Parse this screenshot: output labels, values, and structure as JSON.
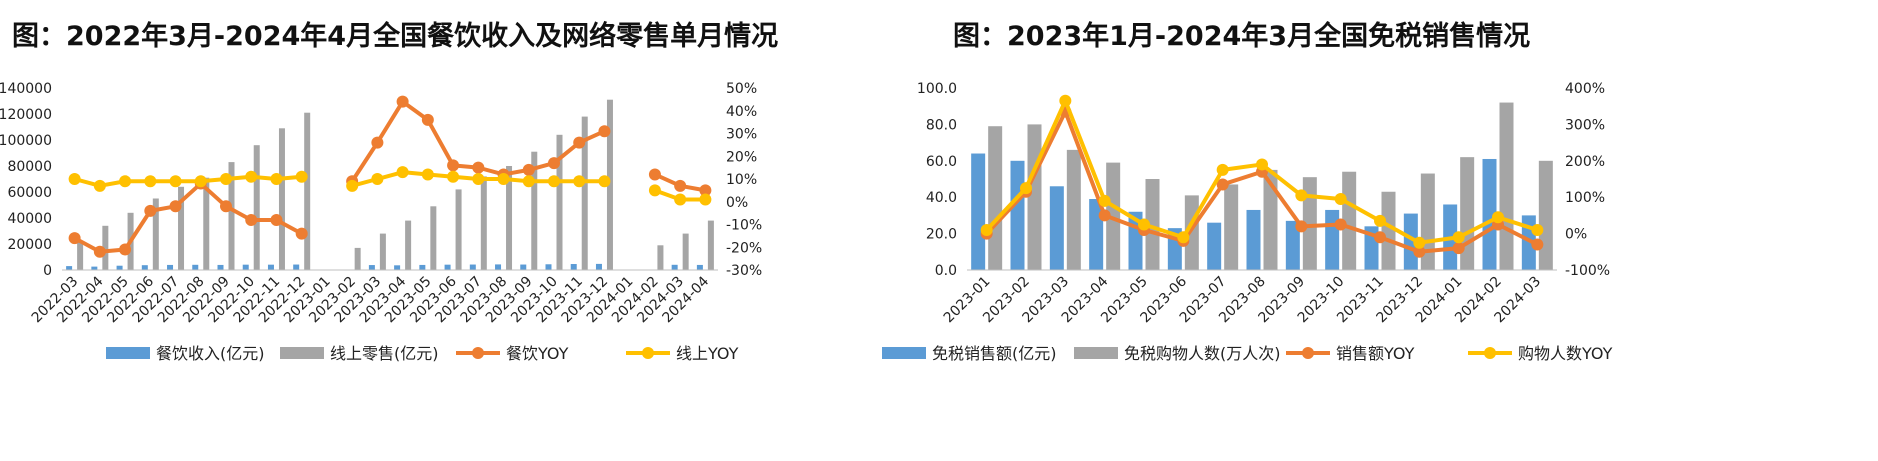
{
  "chart_data": [
    {
      "type": "bar",
      "title": "图：2022年3月-2024年4月全国餐饮收入及网络零售单月情况",
      "categories": [
        "2022-03",
        "2022-04",
        "2022-05",
        "2022-06",
        "2022-07",
        "2022-08",
        "2022-09",
        "2022-10",
        "2022-11",
        "2022-12",
        "2023-01",
        "2023-02",
        "2023-03",
        "2023-04",
        "2023-05",
        "2023-06",
        "2023-07",
        "2023-08",
        "2023-09",
        "2023-10",
        "2023-11",
        "2023-12",
        "2024-01",
        "2024-02",
        "2024-03",
        "2024-04"
      ],
      "y_ticks": [
        "0",
        "20000",
        "40000",
        "60000",
        "80000",
        "100000",
        "120000",
        "140000"
      ],
      "y2_ticks": [
        "-30%",
        "-20%",
        "-10%",
        "0%",
        "10%",
        "20%",
        "30%",
        "40%",
        "50%"
      ],
      "ylim": [
        0,
        140000
      ],
      "y2lim": [
        -30,
        50
      ],
      "legend_position": "bottom",
      "colors": {
        "bar1": "#5b9bd5",
        "bar2": "#a5a5a5",
        "line1": "#ed7d31",
        "line2": "#ffc000"
      },
      "series": [
        {
          "name": "餐饮收入(亿元)",
          "kind": "bar",
          "axis": "left",
          "values": [
            3000,
            2600,
            3300,
            3700,
            3900,
            4000,
            3900,
            4100,
            4100,
            4200,
            null,
            null,
            3800,
            3600,
            3900,
            4100,
            4200,
            4300,
            4200,
            4400,
            4600,
            4700,
            null,
            null,
            4000,
            3900
          ]
        },
        {
          "name": "线上零售(亿元)",
          "kind": "bar",
          "axis": "left",
          "values": [
            22000,
            34000,
            44000,
            55000,
            64000,
            71000,
            83000,
            96000,
            109000,
            121000,
            null,
            17000,
            28000,
            38000,
            49000,
            62000,
            72000,
            80000,
            91000,
            104000,
            118000,
            131000,
            null,
            19000,
            28000,
            38000
          ]
        },
        {
          "name": "餐饮YOY",
          "kind": "line",
          "axis": "right",
          "values": [
            -16,
            -22,
            -21,
            -4,
            -2,
            8,
            -2,
            -8,
            -8,
            -14,
            null,
            9,
            26,
            44,
            36,
            16,
            15,
            12,
            14,
            17,
            26,
            31,
            null,
            12,
            7,
            5
          ]
        },
        {
          "name": "线上YOY",
          "kind": "line",
          "axis": "right",
          "values": [
            10,
            7,
            9,
            9,
            9,
            9,
            10,
            11,
            10,
            11,
            null,
            7,
            10,
            13,
            12,
            11,
            10,
            10,
            9,
            9,
            9,
            9,
            null,
            5,
            1,
            1
          ]
        }
      ]
    },
    {
      "type": "bar",
      "title": "图：2023年1月-2024年3月全国免税销售情况",
      "categories": [
        "2023-01",
        "2023-02",
        "2023-03",
        "2023-04",
        "2023-05",
        "2023-06",
        "2023-07",
        "2023-08",
        "2023-09",
        "2023-10",
        "2023-11",
        "2023-12",
        "2024-01",
        "2024-02",
        "2024-03"
      ],
      "y_ticks": [
        "0.0",
        "20.0",
        "40.0",
        "60.0",
        "80.0",
        "100.0"
      ],
      "y2_ticks": [
        "-100%",
        "0%",
        "100%",
        "200%",
        "300%",
        "400%"
      ],
      "ylim": [
        0,
        100
      ],
      "y2lim": [
        -100,
        400
      ],
      "legend_position": "bottom",
      "colors": {
        "bar1": "#5b9bd5",
        "bar2": "#a5a5a5",
        "line1": "#ed7d31",
        "line2": "#ffc000"
      },
      "series": [
        {
          "name": "免税销售额(亿元)",
          "kind": "bar",
          "axis": "left",
          "values": [
            64,
            60,
            46,
            39,
            32,
            23,
            26,
            33,
            27,
            33,
            24,
            31,
            36,
            61,
            30
          ]
        },
        {
          "name": "免税购物人数(万人次)",
          "kind": "bar",
          "axis": "left",
          "values": [
            79,
            80,
            66,
            59,
            50,
            41,
            47,
            55,
            51,
            54,
            43,
            53,
            62,
            92,
            60
          ]
        },
        {
          "name": "销售额YOY",
          "kind": "line",
          "axis": "right",
          "values": [
            0,
            115,
            335,
            50,
            10,
            -20,
            135,
            170,
            20,
            25,
            -10,
            -50,
            -40,
            25,
            -30
          ]
        },
        {
          "name": "购物人数YOY",
          "kind": "line",
          "axis": "right",
          "values": [
            10,
            125,
            365,
            90,
            25,
            -10,
            175,
            190,
            105,
            95,
            35,
            -25,
            -10,
            45,
            10
          ]
        }
      ]
    }
  ]
}
